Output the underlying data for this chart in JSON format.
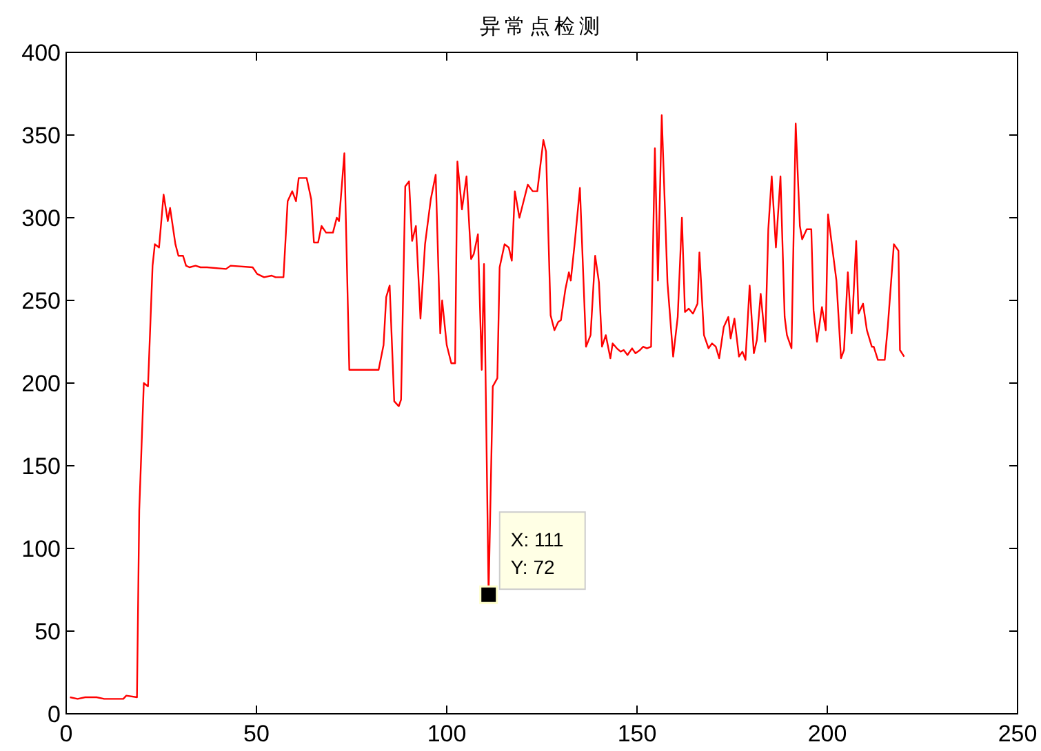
{
  "chart_data": {
    "type": "line",
    "title": "异常点检测",
    "x": [
      1,
      3,
      5,
      8,
      10,
      15,
      15.8,
      18.6,
      19.2,
      20.4,
      21.5,
      22.7,
      23.3,
      24.4,
      25.6,
      26.7,
      27.3,
      28.7,
      29.5,
      30.7,
      31.5,
      32.4,
      34,
      35.3,
      37,
      42,
      43.2,
      49,
      50.2,
      52,
      54,
      55,
      57.1,
      58.2,
      59.4,
      60.4,
      61.1,
      63.2,
      64.4,
      65.1,
      66.2,
      67.1,
      68.3,
      70.1,
      71.1,
      71.7,
      73.1,
      74.4,
      82.1,
      83.4,
      84.1,
      85,
      86.2,
      87.4,
      88,
      89.1,
      90.1,
      90.9,
      91.9,
      93.1,
      94.3,
      95.8,
      97.1,
      98.3,
      98.8,
      100,
      101.2,
      102.2,
      102.8,
      104,
      105.2,
      106.4,
      107.1,
      108.2,
      109.2,
      109.8,
      111,
      112.1,
      113.3,
      113.9,
      115.2,
      116.3,
      117.1,
      117.9,
      119.1,
      121.3,
      122.6,
      123.8,
      125.4,
      126.1,
      127.3,
      128.3,
      129.3,
      130,
      131.2,
      132.1,
      132.6,
      133.6,
      135,
      136.6,
      137.8,
      139,
      140,
      140.8,
      141.8,
      143,
      143.6,
      144.7,
      145.7,
      146.5,
      147.5,
      148.7,
      149.6,
      150.8,
      151.6,
      152.6,
      153.7,
      154.7,
      155.5,
      156.5,
      158,
      159.5,
      160.7,
      161.8,
      162.6,
      163.6,
      164.7,
      165.9,
      166.4,
      167.6,
      168.8,
      169.7,
      170.7,
      171.6,
      172.8,
      174,
      174.6,
      175.6,
      176.8,
      177.7,
      178.5,
      179.6,
      180.7,
      181.5,
      182.5,
      183.7,
      184.5,
      185.4,
      186.5,
      187.7,
      188.8,
      189.4,
      190.6,
      191.7,
      192.8,
      193.4,
      194.6,
      195.8,
      196.4,
      197.3,
      198.6,
      199.6,
      200.2,
      202.4,
      203.6,
      204.4,
      205.4,
      206.4,
      207.6,
      208.2,
      209.4,
      210.4,
      211.7,
      212.2,
      213.3,
      215.1,
      215.9,
      217.5,
      218.7,
      219.1,
      220.2
    ],
    "series": [
      {
        "color": "#ff0000",
        "values": [
          10,
          9,
          10,
          10,
          9,
          9,
          11,
          10,
          123,
          200,
          198,
          271,
          284,
          282,
          314,
          298,
          306,
          284,
          277,
          277,
          271,
          270,
          271,
          270,
          270,
          269,
          271,
          270,
          266,
          264,
          265,
          264,
          264,
          310,
          316,
          310,
          324,
          324,
          311,
          285,
          285,
          295,
          291,
          291,
          300,
          298,
          339,
          208,
          208,
          223,
          252,
          259,
          189,
          186,
          190,
          319,
          322,
          286,
          295,
          239,
          284,
          311,
          326,
          230,
          250,
          223,
          212,
          212,
          334,
          305,
          325,
          275,
          278,
          290,
          208,
          272,
          72,
          198,
          203,
          270,
          284,
          282,
          274,
          316,
          300,
          320,
          316,
          316,
          347,
          340,
          241,
          232,
          237,
          238,
          257,
          267,
          262,
          284,
          318,
          222,
          229,
          277,
          261,
          222,
          229,
          215,
          224,
          221,
          219,
          220,
          217,
          221,
          218,
          220,
          222,
          221,
          222,
          342,
          262,
          362,
          261,
          216,
          240,
          300,
          243,
          245,
          242,
          248,
          279,
          229,
          221,
          224,
          222,
          215,
          234,
          240,
          227,
          239,
          216,
          219,
          214,
          259,
          218,
          226,
          254,
          225,
          293,
          325,
          282,
          325,
          240,
          229,
          221,
          357,
          295,
          287,
          293,
          293,
          244,
          225,
          246,
          232,
          302,
          262,
          215,
          220,
          267,
          230,
          286,
          242,
          248,
          232,
          222,
          222,
          214,
          214,
          234,
          284,
          280,
          220,
          216
        ]
      }
    ],
    "xlim": [
      0,
      250
    ],
    "ylim": [
      0,
      400
    ],
    "xticks": [
      0,
      50,
      100,
      150,
      200,
      250
    ],
    "yticks": [
      0,
      50,
      100,
      150,
      200,
      250,
      300,
      350,
      400
    ],
    "annotations": [
      {
        "text": "X: 111\nY: 72",
        "x": 111,
        "y": 72
      }
    ]
  }
}
